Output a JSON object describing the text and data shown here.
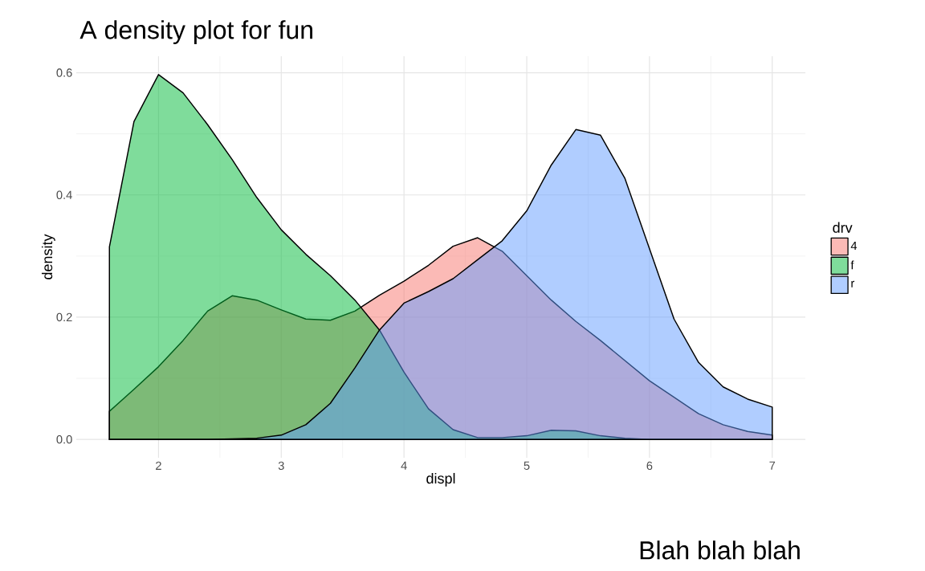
{
  "chart_data": {
    "type": "area",
    "title": "A density plot for fun",
    "xlabel": "displ",
    "ylabel": "density",
    "legend_title": "drv",
    "annotations": [
      "Blah blah blah"
    ],
    "x": [
      1.6,
      1.8,
      2.0,
      2.2,
      2.4,
      2.6,
      2.8,
      3.0,
      3.2,
      3.4,
      3.6,
      3.8,
      4.0,
      4.2,
      4.4,
      4.6,
      4.8,
      5.0,
      5.2,
      5.4,
      5.6,
      5.8,
      6.0,
      6.2,
      6.4,
      6.6,
      6.8,
      7.0
    ],
    "series": [
      {
        "name": "4",
        "color": "#f8766d",
        "values": [
          0.046,
          0.082,
          0.119,
          0.162,
          0.21,
          0.235,
          0.228,
          0.212,
          0.197,
          0.195,
          0.21,
          0.236,
          0.259,
          0.285,
          0.316,
          0.33,
          0.308,
          0.268,
          0.228,
          0.193,
          0.162,
          0.129,
          0.096,
          0.069,
          0.042,
          0.024,
          0.013,
          0.007
        ]
      },
      {
        "name": "f",
        "color": "#00ba38",
        "values": [
          0.315,
          0.52,
          0.597,
          0.567,
          0.515,
          0.458,
          0.396,
          0.343,
          0.303,
          0.268,
          0.228,
          0.179,
          0.11,
          0.05,
          0.016,
          0.003,
          0.003,
          0.006,
          0.015,
          0.014,
          0.006,
          0.002,
          0,
          0,
          0,
          0,
          0,
          0
        ]
      },
      {
        "name": "r",
        "color": "#619cff",
        "values": [
          0,
          0,
          0,
          0,
          0,
          0.001,
          0.002,
          0.007,
          0.024,
          0.059,
          0.117,
          0.179,
          0.223,
          0.242,
          0.263,
          0.294,
          0.325,
          0.374,
          0.449,
          0.507,
          0.498,
          0.427,
          0.312,
          0.197,
          0.126,
          0.086,
          0.066,
          0.053
        ]
      }
    ],
    "xlim": [
      1.33,
      7.27
    ],
    "ylim": [
      -0.03,
      0.627
    ],
    "xticks": [
      2,
      3,
      4,
      5,
      6,
      7
    ],
    "yticks": [
      {
        "value": 0,
        "label": "0.0"
      },
      {
        "value": 0.2,
        "label": "0.2"
      },
      {
        "value": 0.4,
        "label": "0.4"
      },
      {
        "value": 0.6,
        "label": "0.6"
      }
    ],
    "grid": true,
    "legend": "right",
    "marker": "none"
  }
}
